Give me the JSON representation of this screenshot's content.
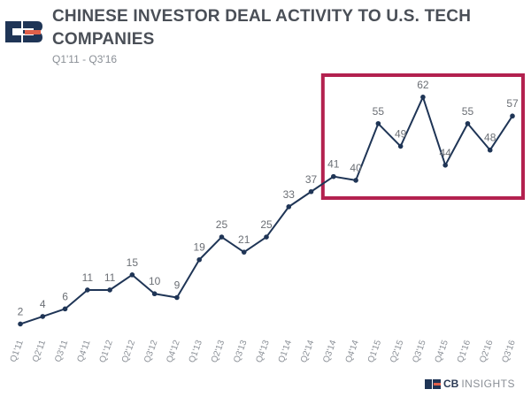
{
  "header": {
    "title": "CHINESE INVESTOR DEAL ACTIVITY TO U.S. TECH COMPANIES",
    "subtitle": "Q1'11 - Q3'16"
  },
  "footer": {
    "brand_cb": "CB",
    "brand_rest": "INSIGHTS"
  },
  "colors": {
    "line": "#1f3556",
    "highlight": "#b3214f",
    "label": "#6b6f75",
    "logo_dark": "#1f3556",
    "logo_accent": "#e0604a"
  },
  "chart_data": {
    "type": "line",
    "categories": [
      "Q1'11",
      "Q2'11",
      "Q3'11",
      "Q4'11",
      "Q1'12",
      "Q2'12",
      "Q3'12",
      "Q4'12",
      "Q1'13",
      "Q2'13",
      "Q3'13",
      "Q4'13",
      "Q1'14",
      "Q2'14",
      "Q3'14",
      "Q4'14",
      "Q1'15",
      "Q2'15",
      "Q3'15",
      "Q4'15",
      "Q1'16",
      "Q2'16",
      "Q3'16"
    ],
    "values": [
      2,
      4,
      6,
      11,
      11,
      15,
      10,
      9,
      19,
      25,
      21,
      25,
      33,
      37,
      41,
      40,
      55,
      49,
      62,
      44,
      55,
      48,
      57
    ],
    "title": "CHINESE INVESTOR DEAL ACTIVITY TO U.S. TECH COMPANIES",
    "xlabel": "",
    "ylabel": "",
    "ylim": [
      0,
      70
    ],
    "grid": false,
    "highlight_range": [
      "Q3'14",
      "Q3'16"
    ]
  }
}
